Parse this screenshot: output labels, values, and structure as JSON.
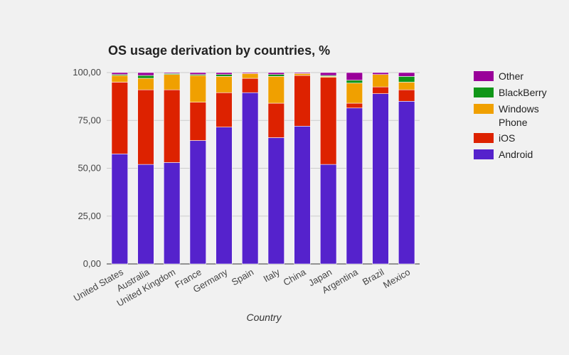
{
  "chart_data": {
    "type": "bar",
    "stacked": true,
    "title": "OS usage derivation by countries, %",
    "xlabel": "Country",
    "ylabel": "",
    "ylim": [
      0,
      100
    ],
    "yticks": [
      "0,00",
      "25,00",
      "50,00",
      "75,00",
      "100,00"
    ],
    "grid": true,
    "legend_position": "right",
    "categories": [
      "United States",
      "Australia",
      "United Kingdom",
      "France",
      "Germany",
      "Spain",
      "Italy",
      "China",
      "Japan",
      "Argentina",
      "Brazil",
      "Mexico"
    ],
    "series": [
      {
        "name": "Android",
        "color": "#5522cc",
        "values": [
          57.5,
          52,
          53,
          64.5,
          71.5,
          89.5,
          66,
          72,
          52,
          81.5,
          89,
          85
        ]
      },
      {
        "name": "iOS",
        "color": "#dd2200",
        "values": [
          37.5,
          39,
          38,
          20,
          18,
          7.5,
          18,
          26.5,
          45.5,
          2.5,
          3.5,
          6
        ]
      },
      {
        "name": "Windows Phone",
        "color": "#f0a000",
        "values": [
          3.5,
          6,
          8,
          14,
          8.5,
          2.5,
          14,
          1,
          0.5,
          10.5,
          6.5,
          4
        ]
      },
      {
        "name": "BlackBerry",
        "color": "#109618",
        "values": [
          0.5,
          1.5,
          0.5,
          0.5,
          1,
          0,
          1,
          0,
          0.5,
          1.5,
          0,
          3
        ]
      },
      {
        "name": "Other",
        "color": "#990099",
        "values": [
          1,
          1.5,
          0.5,
          1,
          1,
          0.5,
          1,
          0.5,
          1.5,
          4,
          1,
          2
        ]
      }
    ],
    "legend_order": [
      "Other",
      "BlackBerry",
      "Windows Phone",
      "iOS",
      "Android"
    ]
  }
}
